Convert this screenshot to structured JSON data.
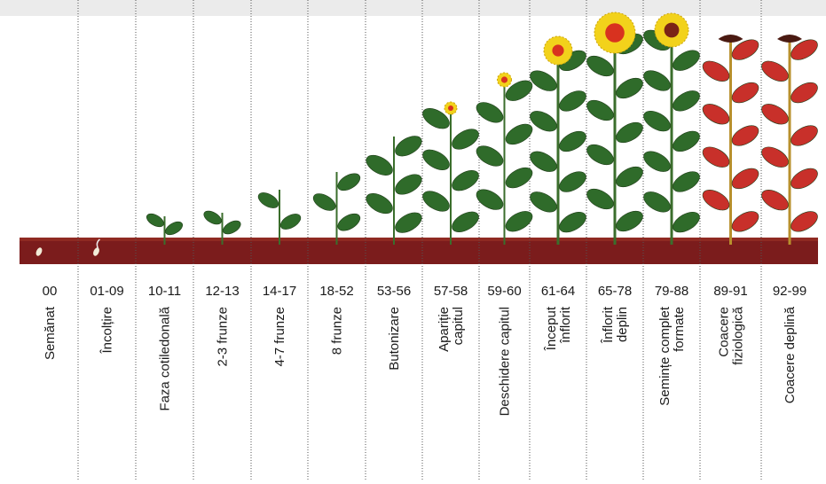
{
  "stages": [
    {
      "code": "00",
      "label": [
        "Semănat"
      ]
    },
    {
      "code": "01-09",
      "label": [
        "Încolțire"
      ]
    },
    {
      "code": "10-11",
      "label": [
        "Faza cotiledonală"
      ]
    },
    {
      "code": "12-13",
      "label": [
        "2-3 frunze"
      ]
    },
    {
      "code": "14-17",
      "label": [
        "4-7 frunze"
      ]
    },
    {
      "code": "18-52",
      "label": [
        "8 frunze"
      ]
    },
    {
      "code": "53-56",
      "label": [
        "Butonizare"
      ]
    },
    {
      "code": "57-58",
      "label": [
        "Apariție",
        "capitul"
      ]
    },
    {
      "code": "59-60",
      "label": [
        "Deschidere capitul"
      ]
    },
    {
      "code": "61-64",
      "label": [
        "Început",
        "înflorit"
      ]
    },
    {
      "code": "65-78",
      "label": [
        "Înflorit",
        "deplin"
      ]
    },
    {
      "code": "79-88",
      "label": [
        "Semințe complet",
        "formate"
      ]
    },
    {
      "code": "89-91",
      "label": [
        "Coacere",
        "fiziologică"
      ]
    },
    {
      "code": "92-99",
      "label": [
        "Coacere deplină"
      ]
    }
  ]
}
